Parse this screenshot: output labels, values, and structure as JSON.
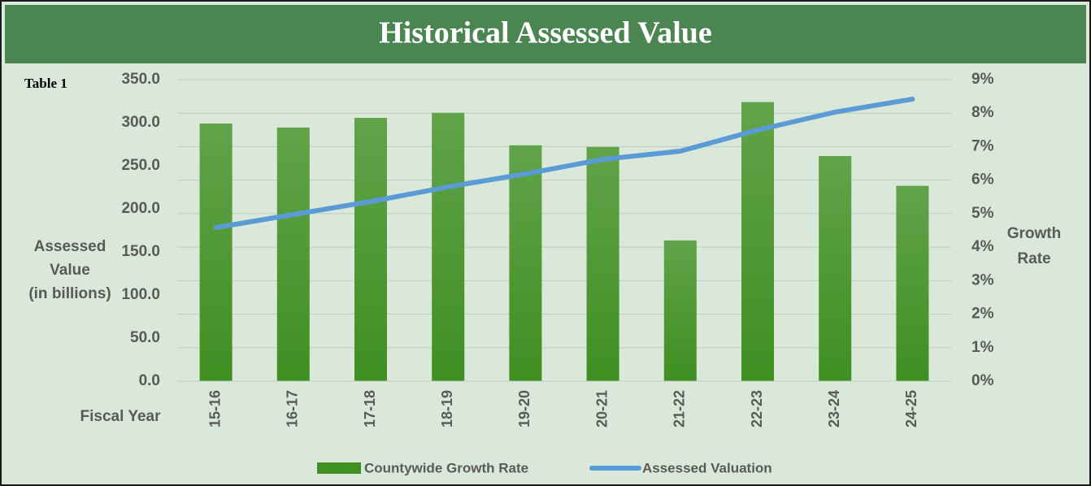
{
  "chart_data": {
    "type": "bar_line",
    "title": "Historical Assessed Value",
    "annotation": "Table 1",
    "y_label": [
      "Assessed",
      "Value",
      "(in billions)"
    ],
    "y2_label": [
      "Growth",
      "Rate"
    ],
    "x_label": "Fiscal Year",
    "categories": [
      "15-16",
      "16-17",
      "17-18",
      "18-19",
      "19-20",
      "20-21",
      "21-22",
      "22-23",
      "23-24",
      "24-25"
    ],
    "series": [
      {
        "name": "Countywide Growth Rate",
        "type": "bar",
        "axis": "y2",
        "color": "#3f8f22",
        "values": [
          7.69,
          7.57,
          7.86,
          8.01,
          7.04,
          6.99,
          4.2,
          8.33,
          6.72,
          5.83
        ]
      },
      {
        "name": "Assessed Valuation",
        "type": "line",
        "axis": "y",
        "color": "#5b9bd5",
        "values": [
          178.3,
          193.4,
          208.5,
          225.5,
          240.6,
          257.5,
          267.0,
          291.5,
          312.3,
          327.4
        ]
      }
    ],
    "ylim": [
      0,
      350
    ],
    "yticks": [
      {
        "value": 0,
        "label": "0.0"
      },
      {
        "value": 50,
        "label": "50.0"
      },
      {
        "value": 100,
        "label": "100.0"
      },
      {
        "value": 150,
        "label": "150.0"
      },
      {
        "value": 200,
        "label": "200.0"
      },
      {
        "value": 250,
        "label": "250.0"
      },
      {
        "value": 300,
        "label": "300.0"
      },
      {
        "value": 350,
        "label": "350.0"
      }
    ],
    "y2lim": [
      0,
      9
    ],
    "y2ticks": [
      {
        "value": 0,
        "label": "0%"
      },
      {
        "value": 1,
        "label": "1%"
      },
      {
        "value": 2,
        "label": "2%"
      },
      {
        "value": 3,
        "label": "3%"
      },
      {
        "value": 4,
        "label": "4%"
      },
      {
        "value": 5,
        "label": "5%"
      },
      {
        "value": 6,
        "label": "6%"
      },
      {
        "value": 7,
        "label": "7%"
      },
      {
        "value": 8,
        "label": "8%"
      },
      {
        "value": 9,
        "label": "9%"
      }
    ],
    "grid": true,
    "legend": "bottom"
  }
}
